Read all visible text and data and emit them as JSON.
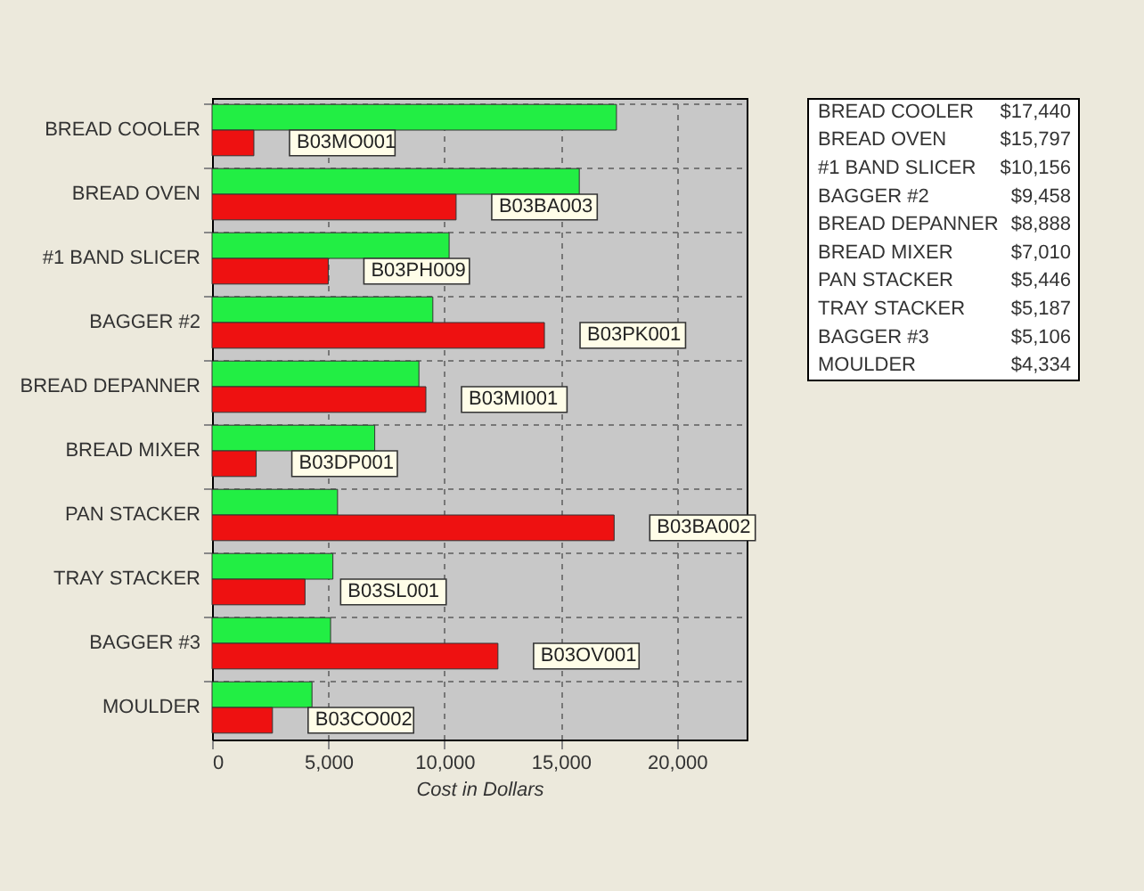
{
  "chart_data": [
    {
      "type": "bar",
      "orientation": "horizontal",
      "xlabel": "Cost in Dollars",
      "categories": [
        "BREAD COOLER",
        "BREAD OVEN",
        "#1 BAND SLICER",
        "BAGGER #2",
        "BREAD DEPANNER",
        "BREAD MIXER",
        "PAN STACKER",
        "TRAY STACKER",
        "BAGGER #3",
        "MOULDER"
      ],
      "series": [
        {
          "color": "#22ee44",
          "values": [
            17400,
            15800,
            10200,
            9500,
            8900,
            7000,
            5400,
            5200,
            5100,
            4300
          ]
        },
        {
          "color": "#ee1111",
          "values": [
            1800,
            10500,
            5000,
            14300,
            9200,
            1900,
            17300,
            4000,
            12300,
            2600
          ]
        }
      ],
      "xlim": [
        0,
        23000
      ],
      "xticks": [
        0,
        {
          "value": 5000,
          "label": "5,000"
        },
        {
          "value": 10000,
          "label": "10,000"
        },
        {
          "value": 15000,
          "label": "15,000"
        },
        {
          "value": 20000,
          "label": "20,000"
        }
      ],
      "grid": true,
      "annotations": [
        {
          "text": "B03MO001",
          "x": 1800,
          "y": "BREAD COOLER"
        },
        {
          "text": "B03BA003",
          "x": 10500,
          "y": "BREAD OVEN"
        },
        {
          "text": "B03PH009",
          "x": 5000,
          "y": "#1 BAND SLICER"
        },
        {
          "text": "B03PK001",
          "x": 14300,
          "y": "BAGGER #2"
        },
        {
          "text": "B03MI001",
          "x": 9200,
          "y": "BREAD DEPANNER"
        },
        {
          "text": "B03DP001",
          "x": 1900,
          "y": "BREAD MIXER"
        },
        {
          "text": "B03BA002",
          "x": 17300,
          "y": "PAN STACKER"
        },
        {
          "text": "B03SL001",
          "x": 4000,
          "y": "TRAY STACKER"
        },
        {
          "text": "B03OV001",
          "x": 12300,
          "y": "BAGGER #3"
        },
        {
          "text": "B03CO002",
          "x": 2600,
          "y": "MOULDER"
        }
      ]
    },
    {
      "type": "other",
      "annotations": [
        "BREAD COOLER",
        "$17,440",
        "BREAD OVEN",
        "$15,797",
        "#1 BAND SLICER",
        "$10,156",
        "BAGGER #2",
        "$9,458",
        "BREAD DEPANNER",
        "$8,888",
        "BREAD MIXER",
        "$7,010",
        "PAN STACKER",
        "$5,446",
        "TRAY STACKER",
        "$5,187",
        "BAGGER #3",
        "$5,106",
        "MOULDER",
        "$4,334"
      ]
    }
  ]
}
